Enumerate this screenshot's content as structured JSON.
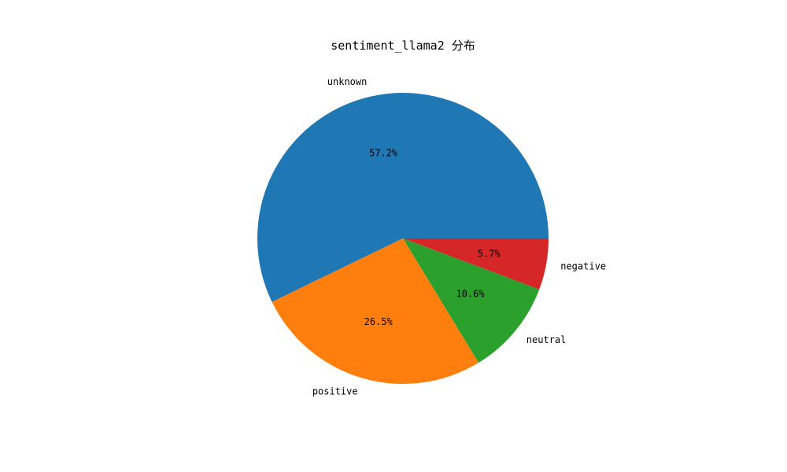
{
  "chart_data": {
    "type": "pie",
    "title": "sentiment_llama2 分布",
    "start_angle_deg": 0,
    "direction": "counterclockwise",
    "slices": [
      {
        "label": "unknown",
        "value": 57.2,
        "pct_label": "57.2%",
        "color": "#1f77b4"
      },
      {
        "label": "positive",
        "value": 26.5,
        "pct_label": "26.5%",
        "color": "#ff7f0e"
      },
      {
        "label": "neutral",
        "value": 10.6,
        "pct_label": "10.6%",
        "color": "#2ca02c"
      },
      {
        "label": "negative",
        "value": 5.7,
        "pct_label": "5.7%",
        "color": "#d62728"
      }
    ]
  }
}
